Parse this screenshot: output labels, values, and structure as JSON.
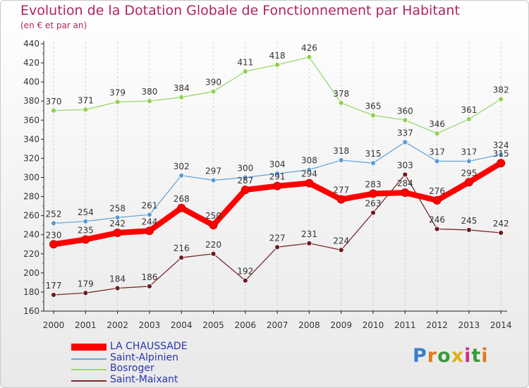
{
  "title": "Evolution de la Dotation Globale de Fonctionnement par Habitant",
  "subtitle": "(en € et par an)",
  "logo_text": "Proxiti",
  "chart_data": {
    "type": "line",
    "title": "Evolution de la Dotation Globale de Fonctionnement par Habitant",
    "subtitle": "(en € et par an)",
    "x": [
      "2000",
      "2001",
      "2002",
      "2003",
      "2004",
      "2005",
      "2006",
      "2007",
      "2008",
      "2009",
      "2010",
      "2011",
      "2012",
      "2013",
      "2014"
    ],
    "ylim": [
      160,
      440
    ],
    "yticks": [
      160,
      180,
      200,
      220,
      240,
      260,
      280,
      300,
      320,
      340,
      360,
      380,
      400,
      420,
      440
    ],
    "grid": "vertical-dashed",
    "legend_position": "bottom-left",
    "series": [
      {
        "name": "Bosroger",
        "color": "#8fd14f",
        "line_color": "#9ad86a",
        "values": [
          370,
          371,
          379,
          380,
          384,
          390,
          411,
          418,
          426,
          378,
          365,
          360,
          346,
          361,
          382
        ]
      },
      {
        "name": "Saint-Alpinien",
        "color": "#5b9bd5",
        "line_color": "#6aa6d8",
        "values": [
          252,
          254,
          258,
          261,
          302,
          297,
          300,
          304,
          308,
          318,
          315,
          337,
          317,
          317,
          324
        ]
      },
      {
        "name": "Saint-Maixant",
        "color": "#6b1d22",
        "line_color": "#7a2a2e",
        "values": [
          177,
          179,
          184,
          186,
          216,
          220,
          192,
          227,
          231,
          224,
          263,
          303,
          246,
          245,
          242
        ]
      },
      {
        "name": "LA CHAUSSADE",
        "color": "#ff0000",
        "line_color": "#ff0000",
        "values": [
          230,
          235,
          242,
          244,
          268,
          250,
          287,
          291,
          294,
          277,
          283,
          284,
          276,
          295,
          315
        ]
      }
    ]
  }
}
